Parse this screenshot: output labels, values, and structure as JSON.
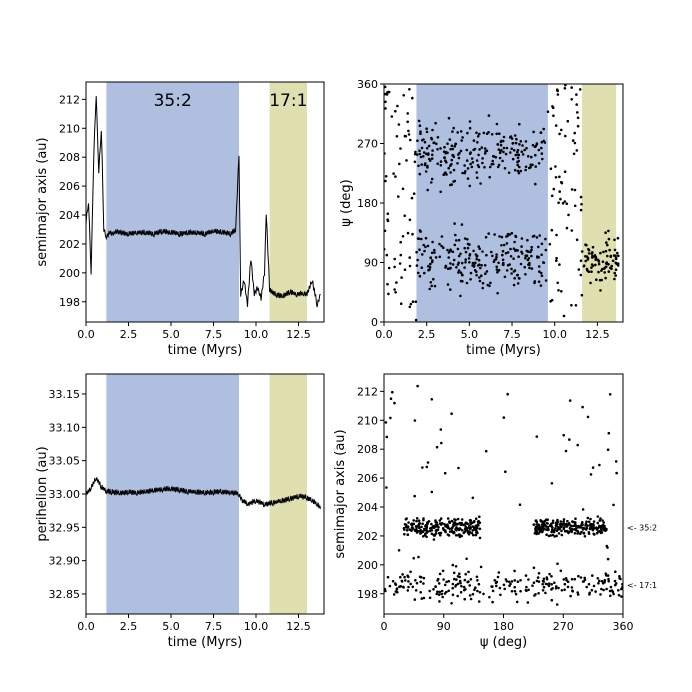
{
  "colors": {
    "resonance_35_2": "#aebfe0",
    "resonance_17_1": "#e0dfb0",
    "curve": "#000000"
  },
  "chart_data": [
    {
      "type": "line",
      "xlabel": "time (Myrs)",
      "ylabel": "semimajor axis (au)",
      "xlim": [
        0,
        14
      ],
      "ylim": [
        196.6,
        213.2
      ],
      "xticks": [
        0,
        2.5,
        5,
        7.5,
        10,
        12.5
      ],
      "xtick_labels": [
        "0.0",
        "2.5",
        "5.0",
        "7.5",
        "10.0",
        "12.5"
      ],
      "yticks": [
        198,
        200,
        202,
        204,
        206,
        208,
        210,
        212
      ],
      "ytick_labels": [
        "198",
        "200",
        "202",
        "204",
        "206",
        "208",
        "210",
        "212"
      ],
      "bands": [
        {
          "label": "35:2",
          "x": [
            1.2,
            9.0
          ],
          "color": "#aebfe0"
        },
        {
          "label": "17:1",
          "x": [
            10.8,
            13.0
          ],
          "color": "#e0dfb0"
        }
      ],
      "series": [
        {
          "x": [
            0,
            0.15,
            0.3,
            0.45,
            0.6,
            0.75,
            0.9,
            1.05,
            1.2,
            1.4,
            1.6,
            1.8,
            2,
            2.5,
            3,
            3.5,
            4,
            4.5,
            5,
            5.5,
            6,
            6.5,
            7,
            7.5,
            8,
            8.5,
            8.8,
            9.0,
            9.1,
            9.3,
            9.5,
            9.7,
            9.9,
            10.1,
            10.3,
            10.5,
            10.6,
            10.8,
            11.2,
            11.6,
            12,
            12.4,
            12.8,
            13,
            13.3,
            13.6,
            13.8
          ],
          "y": [
            203.5,
            205,
            200,
            208,
            212.4,
            207,
            210,
            203,
            202.5,
            202.8,
            202.7,
            202.9,
            202.8,
            202.7,
            202.8,
            202.8,
            202.7,
            202.9,
            202.8,
            202.7,
            202.8,
            202.8,
            202.7,
            202.9,
            202.8,
            202.7,
            203,
            208.2,
            198.5,
            199.5,
            197.8,
            201,
            198.5,
            199,
            198.2,
            200,
            204.2,
            198.8,
            198.5,
            198.4,
            198.7,
            198.5,
            198.6,
            198.5,
            199.5,
            197.8,
            198.5
          ]
        }
      ]
    },
    {
      "type": "scatter",
      "xlabel": "time (Myrs)",
      "ylabel": "ψ (deg)",
      "xlim": [
        0,
        14
      ],
      "ylim": [
        0,
        360
      ],
      "xticks": [
        0,
        2.5,
        5,
        7.5,
        10,
        12.5
      ],
      "xtick_labels": [
        "0.0",
        "2.5",
        "5.0",
        "7.5",
        "10.0",
        "12.5"
      ],
      "yticks": [
        0,
        90,
        180,
        270,
        360
      ],
      "ytick_labels": [
        "0",
        "90",
        "180",
        "270",
        "360"
      ],
      "bands": [
        {
          "label": "",
          "x": [
            1.9,
            9.6
          ],
          "color": "#aebfe0"
        },
        {
          "label": "",
          "x": [
            11.6,
            13.6
          ],
          "color": "#e0dfb0"
        }
      ],
      "clusters": [
        {
          "x": [
            1.9,
            9.5
          ],
          "y": [
            190,
            360
          ],
          "n": 240,
          "center": 255,
          "spread": 40
        },
        {
          "x": [
            1.9,
            9.5
          ],
          "y": [
            10,
            180
          ],
          "n": 240,
          "center": 95,
          "spread": 40
        },
        {
          "x": [
            0,
            1.9
          ],
          "y": [
            0,
            360
          ],
          "n": 70
        },
        {
          "x": [
            9.6,
            11.6
          ],
          "y": [
            0,
            360
          ],
          "n": 70
        },
        {
          "x": [
            11.6,
            13.8
          ],
          "y": [
            0,
            360
          ],
          "n": 90,
          "center": 90,
          "spread": 35
        }
      ]
    },
    {
      "type": "line",
      "xlabel": "time (Myrs)",
      "ylabel": "perihelion (au)",
      "xlim": [
        0,
        14
      ],
      "ylim": [
        32.82,
        33.18
      ],
      "xticks": [
        0,
        2.5,
        5,
        7.5,
        10,
        12.5
      ],
      "xtick_labels": [
        "0.0",
        "2.5",
        "5.0",
        "7.5",
        "10.0",
        "12.5"
      ],
      "yticks": [
        32.85,
        32.9,
        32.95,
        33.0,
        33.05,
        33.1,
        33.15
      ],
      "ytick_labels": [
        "32.85",
        "32.90",
        "32.95",
        "33.00",
        "33.05",
        "33.10",
        "33.15"
      ],
      "bands": [
        {
          "label": "",
          "x": [
            1.2,
            9.0
          ],
          "color": "#aebfe0"
        },
        {
          "label": "",
          "x": [
            10.8,
            13.0
          ],
          "color": "#e0dfb0"
        }
      ],
      "series": [
        {
          "x": [
            0,
            0.3,
            0.6,
            0.9,
            1.2,
            1.5,
            2,
            2.5,
            3,
            3.5,
            4,
            4.5,
            5,
            5.5,
            6,
            6.5,
            7,
            7.5,
            8,
            8.5,
            9.0,
            9.2,
            9.5,
            10,
            10.5,
            11,
            11.5,
            12,
            12.5,
            13,
            13.3,
            13.6,
            13.8
          ],
          "y": [
            33.0,
            33.01,
            33.025,
            33.01,
            33.005,
            33.003,
            33.002,
            33.003,
            33.002,
            33.004,
            33.006,
            33.007,
            33.008,
            33.006,
            33.004,
            33.003,
            33.002,
            33.003,
            33.004,
            33.003,
            33.0,
            32.99,
            32.985,
            32.99,
            32.985,
            32.987,
            32.99,
            32.993,
            32.997,
            32.995,
            32.99,
            32.985,
            32.978
          ]
        }
      ]
    },
    {
      "type": "scatter",
      "xlabel": "ψ (deg)",
      "ylabel": "semimajor axis (au)",
      "xlim": [
        0,
        360
      ],
      "ylim": [
        196.6,
        213.2
      ],
      "xticks": [
        0,
        90,
        180,
        270,
        360
      ],
      "xtick_labels": [
        "0",
        "90",
        "180",
        "270",
        "360"
      ],
      "yticks": [
        198,
        200,
        202,
        204,
        206,
        208,
        210,
        212
      ],
      "ytick_labels": [
        "198",
        "200",
        "202",
        "204",
        "206",
        "208",
        "210",
        "212"
      ],
      "annotations": [
        {
          "text": "<- 35:2",
          "y": 202.6
        },
        {
          "text": "<- 17:1",
          "y": 198.6
        }
      ],
      "clusters": [
        {
          "x": [
            30,
            145
          ],
          "y": [
            202.6,
            202.6
          ],
          "n": 230,
          "spread_y": 0.45
        },
        {
          "x": [
            225,
            335
          ],
          "y": [
            202.6,
            202.6
          ],
          "n": 230,
          "spread_y": 0.45
        },
        {
          "x": [
            0,
            360
          ],
          "y": [
            198.6,
            198.6
          ],
          "n": 230,
          "spread_y": 0.75
        },
        {
          "x": [
            0,
            360
          ],
          "y": [
            197.5,
            212.5
          ],
          "n": 80
        }
      ]
    }
  ]
}
